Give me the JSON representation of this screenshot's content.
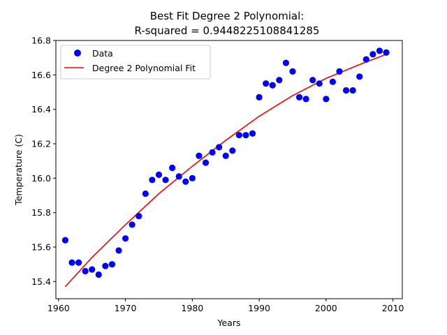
{
  "chart_data": {
    "type": "scatter",
    "title_line1": "Best Fit Degree 2 Polynomial:",
    "title_line2": "R-squared = 0.9448225108841285",
    "xlabel": "Years",
    "ylabel": "Temperature (C)",
    "xlim": [
      1959.6,
      2011.4
    ],
    "ylim": [
      15.3,
      16.8
    ],
    "xticks": [
      1960,
      1970,
      1980,
      1990,
      2000,
      2010
    ],
    "yticks": [
      15.4,
      15.6,
      15.8,
      16.0,
      16.2,
      16.4,
      16.6,
      16.8
    ],
    "ytick_labels": [
      "15.4",
      "15.6",
      "15.8",
      "16.0",
      "16.2",
      "16.4",
      "16.6",
      "16.8"
    ],
    "grid": false,
    "legend_position": "upper-left",
    "colors": {
      "data": "#0000ff",
      "fit": "#ff0000"
    },
    "series": [
      {
        "name": "Data",
        "kind": "points",
        "x": [
          1961,
          1962,
          1963,
          1964,
          1965,
          1966,
          1967,
          1968,
          1969,
          1970,
          1971,
          1972,
          1973,
          1974,
          1975,
          1976,
          1977,
          1978,
          1979,
          1980,
          1981,
          1982,
          1983,
          1984,
          1985,
          1986,
          1987,
          1988,
          1989,
          1990,
          1991,
          1992,
          1993,
          1994,
          1995,
          1996,
          1997,
          1998,
          1999,
          2000,
          2001,
          2002,
          2003,
          2004,
          2005,
          2006,
          2007,
          2008,
          2009
        ],
        "y": [
          15.64,
          15.51,
          15.51,
          15.46,
          15.47,
          15.44,
          15.49,
          15.5,
          15.58,
          15.65,
          15.73,
          15.78,
          15.91,
          15.99,
          16.02,
          15.99,
          16.06,
          16.01,
          15.98,
          16.0,
          16.13,
          16.09,
          16.15,
          16.18,
          16.13,
          16.16,
          16.25,
          16.25,
          16.26,
          16.47,
          16.55,
          16.54,
          16.57,
          16.67,
          16.62,
          16.47,
          16.46,
          16.57,
          16.55,
          16.46,
          16.56,
          16.62,
          16.51,
          16.51,
          16.59,
          16.69,
          16.72,
          16.74,
          16.73
        ]
      },
      {
        "name": "Degree 2 Polynomial Fit",
        "kind": "line",
        "x": [
          1961,
          1965,
          1970,
          1975,
          1980,
          1985,
          1990,
          1995,
          2000,
          2005,
          2009
        ],
        "y": [
          15.37,
          15.54,
          15.73,
          15.91,
          16.07,
          16.22,
          16.36,
          16.48,
          16.58,
          16.66,
          16.72
        ]
      }
    ]
  }
}
